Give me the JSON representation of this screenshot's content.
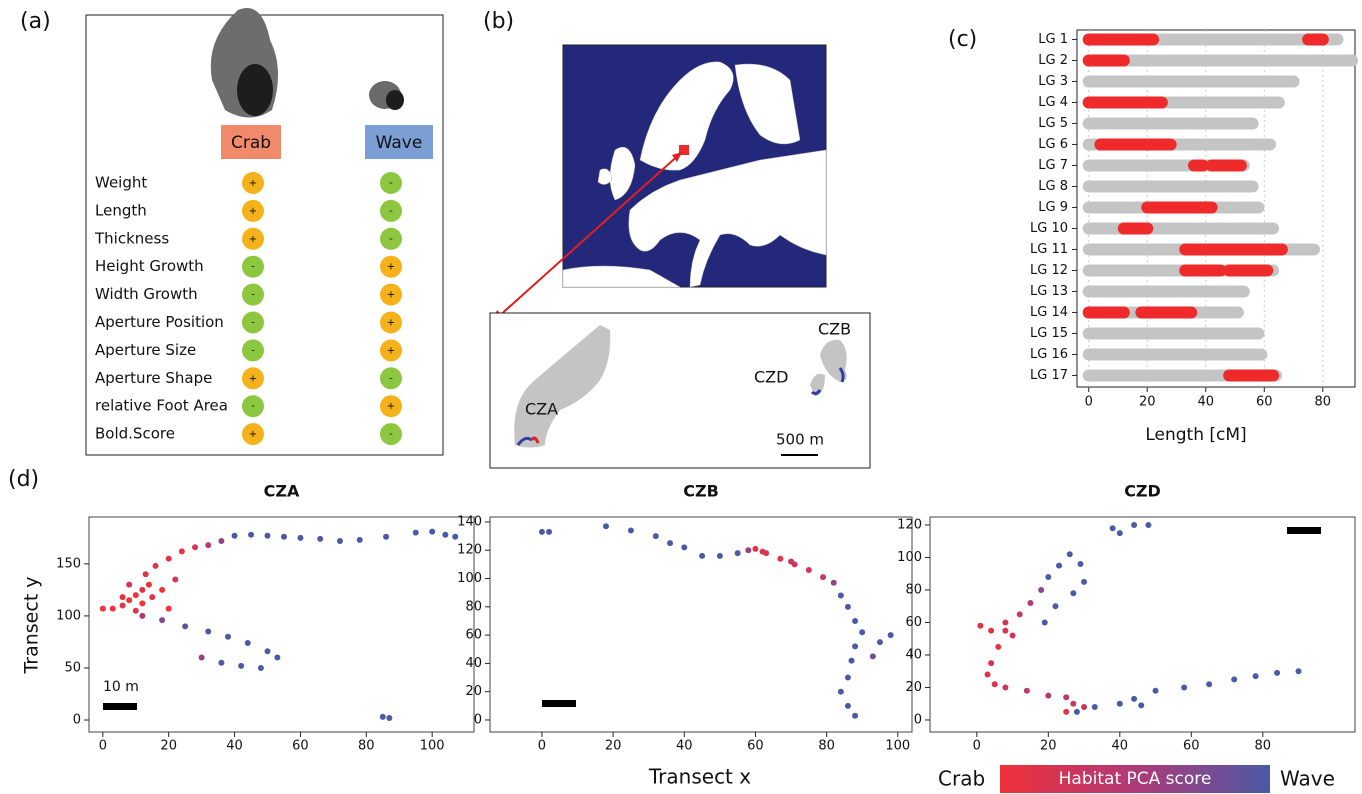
{
  "panel_labels": [
    "(a)",
    "(b)",
    "(c)",
    "(d)"
  ],
  "panel_a": {
    "ecotypes": [
      "Crab",
      "Wave"
    ],
    "traits": [
      "Weight",
      "Length",
      "Thickness",
      "Height Growth",
      "Width Growth",
      "Aperture Position",
      "Aperture Size",
      "Aperture Shape",
      "relative Foot Area",
      "Bold.Score"
    ],
    "crab": [
      "+",
      "+",
      "+",
      "-",
      "-",
      "-",
      "-",
      "+",
      "-",
      "+"
    ],
    "wave": [
      "-",
      "-",
      "-",
      "+",
      "+",
      "+",
      "+",
      "-",
      "+",
      "-"
    ]
  },
  "panel_b": {
    "sites": [
      "CZA",
      "CZB",
      "CZD"
    ],
    "scale": "500 m"
  },
  "chart_data": [
    {
      "type": "chromosome",
      "x_label": "Length [cM]",
      "categories": [
        "LG 1",
        "LG 2",
        "LG 3",
        "LG 4",
        "LG 5",
        "LG 6",
        "LG 7",
        "LG 8",
        "LG 9",
        "LG 10",
        "LG 11",
        "LG 12",
        "LG 13",
        "LG 14",
        "LG 15",
        "LG 16",
        "LG 17"
      ],
      "values": [
        85,
        90,
        70,
        65,
        56,
        62,
        53,
        56,
        58,
        63,
        77,
        63,
        53,
        51,
        58,
        59,
        64
      ],
      "color": "#c4c4c4",
      "segments": [
        [
          [
            0,
            22
          ],
          [
            75,
            80
          ]
        ],
        [
          [
            0,
            12
          ]
        ],
        [],
        [
          [
            0,
            25
          ]
        ],
        [],
        [
          [
            4,
            28
          ]
        ],
        [
          [
            36,
            39
          ],
          [
            42,
            52
          ]
        ],
        [],
        [
          [
            20,
            42
          ]
        ],
        [
          [
            12,
            20
          ]
        ],
        [
          [
            33,
            66
          ]
        ],
        [
          [
            33,
            45
          ],
          [
            48,
            61
          ]
        ],
        [],
        [
          [
            0,
            12
          ],
          [
            18,
            35
          ]
        ],
        [],
        [],
        [
          [
            48,
            63
          ]
        ]
      ],
      "segment_color": "#ee2a2a",
      "xlim": [
        -4,
        91
      ],
      "xticks": [
        0,
        20,
        40,
        60,
        80
      ],
      "grid": true
    },
    {
      "type": "scatter",
      "title": "CZA",
      "y_label": "Transect y",
      "scale_label": "10 m",
      "x": [
        0,
        3,
        6,
        8,
        10,
        12,
        14,
        10,
        12,
        15,
        8,
        13,
        16,
        20,
        24,
        28,
        32,
        36,
        40,
        45,
        50,
        55,
        60,
        66,
        72,
        78,
        86,
        95,
        100,
        104,
        107,
        12,
        18,
        25,
        32,
        38,
        44,
        50,
        53,
        30,
        36,
        42,
        48,
        85,
        87,
        20,
        6,
        18,
        22
      ],
      "y": [
        107,
        107,
        110,
        115,
        120,
        125,
        130,
        105,
        112,
        118,
        130,
        140,
        148,
        155,
        162,
        166,
        168,
        172,
        177,
        178,
        177,
        176,
        175,
        174,
        172,
        173,
        176,
        180,
        181,
        178,
        176,
        100,
        96,
        90,
        85,
        80,
        74,
        66,
        60,
        60,
        55,
        52,
        50,
        3,
        2,
        107,
        118,
        125,
        135
      ],
      "score": [
        0,
        0,
        0.1,
        0,
        0,
        0.1,
        0,
        0.1,
        0,
        0.1,
        0.2,
        0.1,
        0.1,
        0.1,
        0.1,
        0.2,
        0.4,
        0.7,
        1,
        1,
        1,
        1,
        1,
        1,
        1,
        1,
        1,
        1,
        1,
        1,
        1,
        0.5,
        0.7,
        0.9,
        1,
        1,
        1,
        1,
        1,
        0.6,
        1,
        1,
        1,
        1,
        1,
        0,
        0.1,
        0,
        0.2
      ],
      "xlim": [
        -4.2,
        112.7
      ],
      "ylim": [
        -11.5,
        195
      ],
      "xticks": [
        0,
        20,
        40,
        60,
        80,
        100
      ],
      "yticks": [
        0,
        50,
        100,
        150
      ]
    },
    {
      "type": "scatter",
      "title": "CZB",
      "x_label": "Transect x",
      "x": [
        0,
        2,
        18,
        25,
        32,
        36,
        40,
        45,
        50,
        55,
        58,
        60,
        63,
        67,
        71,
        75,
        79,
        82,
        84,
        86,
        88,
        90,
        88,
        87,
        86,
        84,
        86,
        88,
        95,
        98,
        93,
        62,
        70
      ],
      "y": [
        133,
        133,
        137,
        134,
        130,
        125,
        122,
        116,
        116,
        118,
        120,
        121,
        118,
        114,
        110,
        106,
        101,
        97,
        88,
        80,
        70,
        62,
        52,
        42,
        30,
        20,
        10,
        3,
        55,
        60,
        45,
        119,
        112
      ],
      "score": [
        1,
        1,
        1,
        1,
        1,
        1,
        1,
        1,
        1,
        1,
        0.6,
        0.1,
        0.1,
        0.1,
        0.2,
        0.2,
        0.3,
        0.7,
        1,
        1,
        1,
        1,
        1,
        1,
        1,
        1,
        1,
        1,
        1,
        1,
        0.8,
        0.2,
        0.3
      ],
      "xlim": [
        -14.6,
        104
      ],
      "ylim": [
        -8.5,
        143.5
      ],
      "xticks": [
        0,
        20,
        40,
        60,
        80,
        100
      ],
      "yticks": [
        0,
        20,
        40,
        60,
        80,
        100,
        120,
        140
      ]
    },
    {
      "type": "scatter",
      "title": "CZD",
      "x": [
        1,
        4,
        8,
        12,
        15,
        18,
        20,
        23,
        26,
        29,
        30,
        27,
        22,
        19,
        10,
        6,
        4,
        3,
        5,
        8,
        14,
        20,
        25,
        27,
        30,
        25,
        28,
        33,
        40,
        44,
        46,
        50,
        58,
        65,
        72,
        78,
        84,
        90,
        38,
        40,
        44,
        48,
        8
      ],
      "y": [
        58,
        55,
        60,
        65,
        72,
        80,
        88,
        95,
        102,
        96,
        85,
        78,
        70,
        60,
        52,
        45,
        35,
        28,
        22,
        20,
        18,
        15,
        14,
        10,
        8,
        5,
        5,
        8,
        10,
        13,
        9,
        18,
        20,
        22,
        25,
        27,
        29,
        30,
        118,
        115,
        120,
        120,
        55
      ],
      "score": [
        0.1,
        0.1,
        0.2,
        0.3,
        0.5,
        0.7,
        1,
        1,
        1,
        1,
        1,
        1,
        1,
        1,
        0.3,
        0.1,
        0.1,
        0.1,
        0.2,
        0.3,
        0.4,
        0.5,
        0.4,
        0.3,
        0.3,
        0.1,
        1,
        1,
        1,
        1,
        1,
        1,
        1,
        1,
        1,
        1,
        1,
        1,
        1,
        1,
        1,
        1,
        0.2
      ],
      "xlim": [
        -13.1,
        105.8
      ],
      "ylim": [
        -7.4,
        124.9
      ],
      "xticks": [
        0,
        20,
        40,
        60,
        80
      ],
      "yticks": [
        0,
        20,
        40,
        60,
        80,
        100,
        120
      ]
    }
  ],
  "colorbar": {
    "low_label": "Crab",
    "title": "Habitat PCA score",
    "high_label": "Wave",
    "colors": [
      "#f0303a",
      "#b03a78",
      "#4a5aa6"
    ]
  }
}
